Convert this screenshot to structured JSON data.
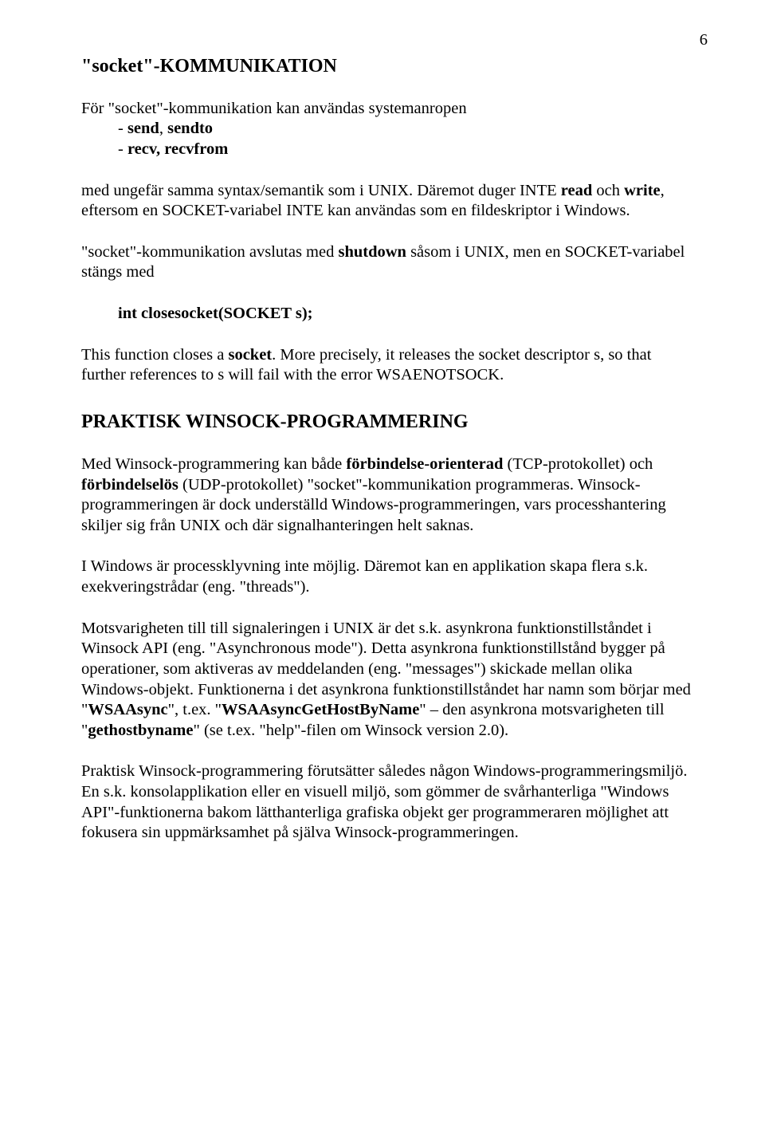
{
  "pageNumber": "6",
  "title": "\"socket\"-KOMMUNIKATION",
  "intro": "För \"socket\"-kommunikation kan användas systemanropen",
  "bullets": {
    "b1": "- send, sendto",
    "b2": "- recv, recvfrom"
  },
  "unixNote_pre": "med ungefär samma syntax/semantik som i UNIX. Däremot duger INTE ",
  "unixNote_read": "read",
  "unixNote_mid1": " och ",
  "unixNote_write": "write",
  "unixNote_post": ", eftersom en SOCKET-variabel INTE kan användas som en fildeskriptor i Windows.",
  "shutdown_pre": "\"socket\"-kommunikation avslutas med ",
  "shutdown_b": "shutdown",
  "shutdown_post": " såsom i UNIX, men en SOCKET-variabel stängs med",
  "closesocket": "int closesocket(SOCKET s);",
  "closeDesc_pre": "This function closes a ",
  "closeDesc_b": "socket",
  "closeDesc_post": ". More precisely, it releases the socket descriptor s, so that further references to s will fail with the error WSAENOTSOCK.",
  "h2": "PRAKTISK  WINSOCK-PROGRAMMERING",
  "p1_pre": "Med Winsock-programmering kan både ",
  "p1_b1": "förbindelse-orienterad",
  "p1_mid1": " (TCP-protokollet) och ",
  "p1_b2": "förbindelselös",
  "p1_post": " (UDP-protokollet) \"socket\"-kommunikation programmeras. Winsock-programmeringen är dock underställd Windows-programmeringen, vars processhantering skiljer sig från UNIX och där signalhanteringen helt saknas.",
  "p2": "I Windows är processklyvning inte möjlig. Däremot kan en applikation skapa flera s.k. exekveringstrådar (eng. \"threads\").",
  "p3_pre": "Motsvarigheten till till signaleringen i UNIX är det s.k. asynkrona funktionstillståndet i Winsock API (eng. \"Asynchronous mode\"). Detta asynkrona funktionstillstånd bygger på operationer, som aktiveras av meddelanden (eng. \"messages\") skickade mellan olika Windows-objekt. Funktionerna i det asynkrona funktionstillståndet har namn som börjar med \"",
  "p3_b1": "WSAAsync",
  "p3_mid1": "\", t.ex. \"",
  "p3_b2": "WSAAsyncGetHostByName",
  "p3_mid2": "\" – den asynkrona motsvarigheten till \"",
  "p3_b3": "gethostbyname",
  "p3_post": "\" (se t.ex. \"help\"-filen om Winsock version 2.0).",
  "p4": "Praktisk Winsock-programmering förutsätter således någon Windows-programmeringsmiljö. En s.k. konsolapplikation eller en visuell miljö, som gömmer de svårhanterliga \"Windows API\"-funktionerna bakom lätthanterliga grafiska objekt ger programmeraren möjlighet att fokusera sin uppmärksamhet på själva Winsock-programmeringen."
}
